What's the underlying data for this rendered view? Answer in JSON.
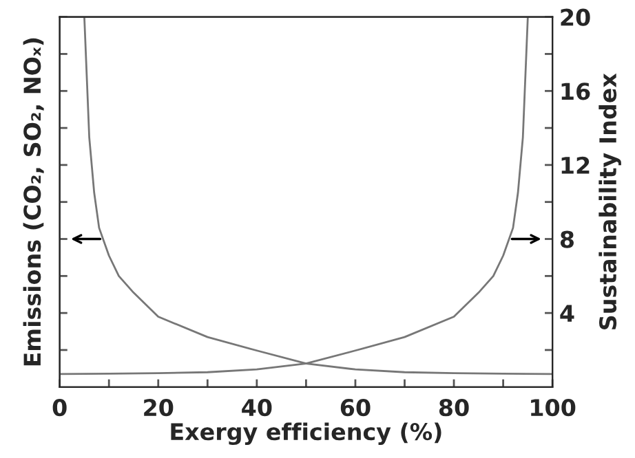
{
  "chart_data": {
    "type": "line",
    "xlabel": "Exergy efficiency (%)",
    "ylabel": "Emissions (CO₂, SO₂, NOₓ)",
    "y2label": "Sustainability Index",
    "xlim": [
      0,
      100
    ],
    "xticks": [
      0,
      {
        "value": 10,
        "label": null
      },
      20,
      {
        "value": 30,
        "label": null
      },
      40,
      {
        "value": 50,
        "label": null
      },
      60,
      {
        "value": 70,
        "label": null
      },
      80,
      {
        "value": 90,
        "label": null
      },
      100
    ],
    "y2lim": [
      0,
      20
    ],
    "y2ticks": [
      {
        "value": 2,
        "label": null
      },
      4,
      {
        "value": 6,
        "label": null
      },
      8,
      {
        "value": 10,
        "label": null
      },
      12,
      {
        "value": 14,
        "label": null
      },
      16,
      {
        "value": 18,
        "label": null
      },
      20
    ],
    "grid": false,
    "legend": false,
    "marker": "none",
    "line_style": "solid",
    "series": [
      {
        "color": "#777777",
        "axis": "y2",
        "x": [
          5,
          6,
          7,
          8,
          10,
          12,
          15,
          20,
          30,
          40,
          50,
          60,
          70,
          80,
          90,
          100
        ],
        "values": [
          20,
          13.5,
          10.5,
          8.6,
          7.1,
          6.0,
          5.1,
          3.8,
          2.7,
          1.97,
          1.27,
          0.95,
          0.8,
          0.75,
          0.72,
          0.7
        ]
      },
      {
        "color": "#777777",
        "axis": "y2",
        "x": [
          0,
          10,
          20,
          30,
          40,
          50,
          60,
          70,
          80,
          85,
          88,
          90,
          92,
          93,
          94,
          95
        ],
        "values": [
          0.7,
          0.72,
          0.75,
          0.8,
          0.95,
          1.27,
          1.97,
          2.7,
          3.8,
          5.1,
          6.0,
          7.1,
          8.6,
          10.5,
          13.5,
          20
        ]
      }
    ]
  }
}
